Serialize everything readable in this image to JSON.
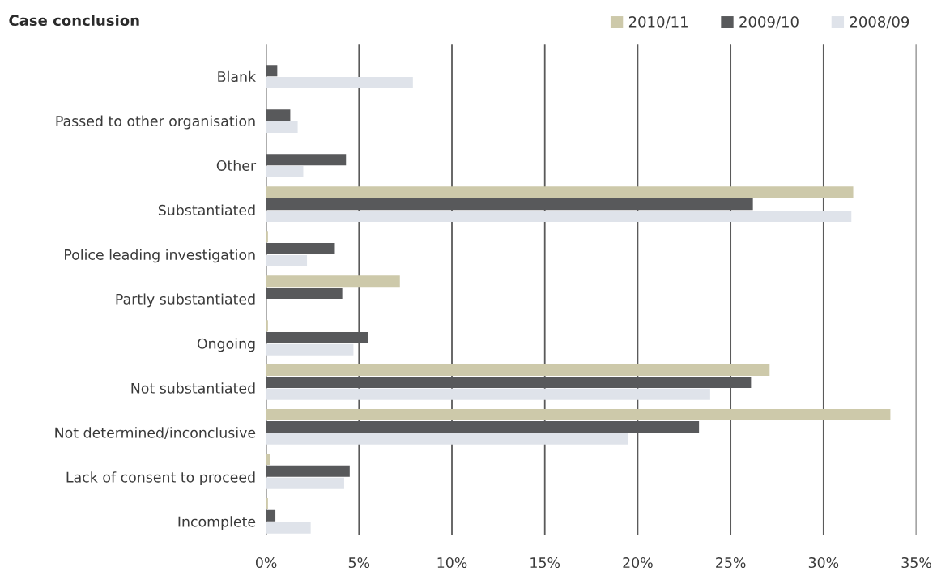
{
  "chart_data": {
    "type": "bar",
    "orientation": "horizontal",
    "title": "Case conclusion",
    "categories": [
      "Blank",
      "Passed to other organisation",
      "Other",
      "Substantiated",
      "Police leading investigation",
      "Partly substantiated",
      "Ongoing",
      "Not substantiated",
      "Not determined/inconclusive",
      "Lack of consent to proceed",
      "Incomplete"
    ],
    "series": [
      {
        "name": "2010/11",
        "color": "#cdc9aa",
        "values": [
          null,
          null,
          null,
          31.6,
          0.1,
          7.2,
          0.1,
          27.1,
          33.6,
          0.2,
          0.1
        ]
      },
      {
        "name": "2009/10",
        "color": "#58595b",
        "values": [
          0.6,
          1.3,
          4.3,
          26.2,
          3.7,
          4.1,
          5.5,
          26.1,
          23.3,
          4.5,
          0.5
        ]
      },
      {
        "name": "2008/09",
        "color": "#dfe3ea",
        "values": [
          7.9,
          1.7,
          2.0,
          31.5,
          2.2,
          null,
          4.7,
          23.9,
          19.5,
          4.2,
          2.4
        ]
      }
    ],
    "xlim": [
      0,
      35
    ],
    "xticks": [
      {
        "value": 0,
        "label": "0%"
      },
      {
        "value": 5,
        "label": "5%"
      },
      {
        "value": 10,
        "label": "10%"
      },
      {
        "value": 15,
        "label": "15%"
      },
      {
        "value": 20,
        "label": "20%"
      },
      {
        "value": 25,
        "label": "25%"
      },
      {
        "value": 30,
        "label": "30%"
      },
      {
        "value": 35,
        "label": "35%"
      }
    ],
    "grid": "x",
    "legend": "top right"
  }
}
